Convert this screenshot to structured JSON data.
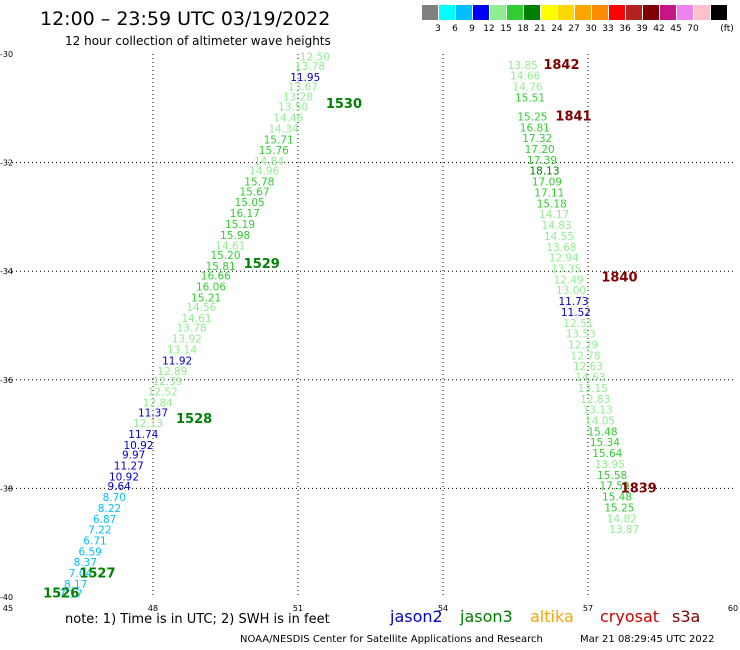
{
  "title": "12:00 – 23:59 UTC 03/19/2022",
  "subtitle": "12 hour collection of altimeter wave heights",
  "legend": {
    "unit": "(ft)",
    "colors": [
      "#808080",
      "#00ffff",
      "#00bfff",
      "#0000ff",
      "#90ee90",
      "#32cd32",
      "#008000",
      "#ffff00",
      "#ffd700",
      "#ffa500",
      "#ff8c00",
      "#ff0000",
      "#b22222",
      "#800000",
      "#c71585",
      "#ee82ee",
      "#ffc0cb",
      "#000000"
    ],
    "labels": [
      "3",
      "6",
      "9",
      "12",
      "15",
      "18",
      "21",
      "24",
      "27",
      "30",
      "33",
      "36",
      "39",
      "42",
      "45",
      "70"
    ]
  },
  "footer": {
    "note": "note:  1) Time is in UTC;  2) SWH is in feet",
    "credit": "NOAA/NESDIS Center for Satellite Applications and Research",
    "timestamp": "Mar 21 08:29:45 UTC 2022"
  },
  "satellites": [
    {
      "name": "jason2",
      "color": "#0000cc"
    },
    {
      "name": "jason3",
      "color": "#008000"
    },
    {
      "name": "altika",
      "color": "#ffa500"
    },
    {
      "name": "cryosat",
      "color": "#cc0000"
    },
    {
      "name": "s3a",
      "color": "#800000"
    }
  ],
  "chart_data": {
    "type": "scatter",
    "xlim": [
      45,
      60
    ],
    "ylim": [
      -40,
      -30
    ],
    "x_ticks": [
      45,
      48,
      51,
      54,
      57,
      60
    ],
    "y_ticks": [
      -30,
      -32,
      -34,
      -36,
      -38,
      -40
    ],
    "grid": true,
    "tracks": [
      {
        "points": [
          {
            "x": 51.35,
            "y": -30.05,
            "swh": "12.50",
            "color": "#90ee90"
          },
          {
            "x": 51.25,
            "y": -30.22,
            "swh": "13.78",
            "color": "#90ee90"
          },
          {
            "x": 51.15,
            "y": -30.42,
            "swh": "11.95",
            "color": "#0000cc"
          },
          {
            "x": 51.1,
            "y": -30.6,
            "swh": "13.67",
            "color": "#90ee90"
          },
          {
            "x": 51.0,
            "y": -30.78,
            "swh": "13.28",
            "color": "#90ee90"
          },
          {
            "x": 50.9,
            "y": -30.97,
            "swh": "13.50",
            "color": "#90ee90"
          },
          {
            "x": 50.8,
            "y": -31.17,
            "swh": "14.46",
            "color": "#90ee90"
          },
          {
            "x": 50.7,
            "y": -31.37,
            "swh": "14.34",
            "color": "#90ee90"
          },
          {
            "x": 50.6,
            "y": -31.57,
            "swh": "15.71",
            "color": "#32cd32"
          },
          {
            "x": 50.5,
            "y": -31.77,
            "swh": "15.76",
            "color": "#32cd32"
          },
          {
            "x": 50.4,
            "y": -31.97,
            "swh": "14.84",
            "color": "#90ee90"
          },
          {
            "x": 50.3,
            "y": -32.15,
            "swh": "14.96",
            "color": "#90ee90"
          },
          {
            "x": 50.2,
            "y": -32.35,
            "swh": "15.78",
            "color": "#32cd32"
          },
          {
            "x": 50.1,
            "y": -32.53,
            "swh": "15.67",
            "color": "#32cd32"
          },
          {
            "x": 50.0,
            "y": -32.73,
            "swh": "15.05",
            "color": "#32cd32"
          },
          {
            "x": 49.9,
            "y": -32.93,
            "swh": "16.17",
            "color": "#32cd32"
          },
          {
            "x": 49.8,
            "y": -33.13,
            "swh": "15.19",
            "color": "#32cd32"
          },
          {
            "x": 49.7,
            "y": -33.33,
            "swh": "15.98",
            "color": "#32cd32"
          },
          {
            "x": 49.6,
            "y": -33.53,
            "swh": "14.61",
            "color": "#90ee90"
          },
          {
            "x": 49.5,
            "y": -33.7,
            "swh": "15.20",
            "color": "#32cd32"
          },
          {
            "x": 49.4,
            "y": -33.9,
            "swh": "15.81",
            "color": "#32cd32"
          },
          {
            "x": 49.3,
            "y": -34.08,
            "swh": "16.66",
            "color": "#32cd32"
          },
          {
            "x": 49.2,
            "y": -34.28,
            "swh": "16.06",
            "color": "#32cd32"
          },
          {
            "x": 49.1,
            "y": -34.48,
            "swh": "15.21",
            "color": "#32cd32"
          },
          {
            "x": 49.0,
            "y": -34.66,
            "swh": "14.56",
            "color": "#90ee90"
          },
          {
            "x": 48.9,
            "y": -34.86,
            "swh": "14.61",
            "color": "#90ee90"
          },
          {
            "x": 48.8,
            "y": -35.04,
            "swh": "13.78",
            "color": "#90ee90"
          },
          {
            "x": 48.7,
            "y": -35.24,
            "swh": "13.92",
            "color": "#90ee90"
          },
          {
            "x": 48.6,
            "y": -35.44,
            "swh": "13.14",
            "color": "#90ee90"
          },
          {
            "x": 48.5,
            "y": -35.64,
            "swh": "11.92",
            "color": "#0000cc"
          },
          {
            "x": 48.4,
            "y": -35.84,
            "swh": "12.89",
            "color": "#90ee90"
          },
          {
            "x": 48.3,
            "y": -36.02,
            "swh": "12.39",
            "color": "#90ee90"
          },
          {
            "x": 48.2,
            "y": -36.22,
            "swh": "12.52",
            "color": "#90ee90"
          },
          {
            "x": 48.1,
            "y": -36.42,
            "swh": "12.84",
            "color": "#90ee90"
          },
          {
            "x": 48.0,
            "y": -36.6,
            "swh": "11.37",
            "color": "#0000cc"
          },
          {
            "x": 47.9,
            "y": -36.8,
            "swh": "12.13",
            "color": "#90ee90"
          },
          {
            "x": 47.8,
            "y": -37.0,
            "swh": "11.74",
            "color": "#0000cc"
          },
          {
            "x": 47.7,
            "y": -37.2,
            "swh": "10.92",
            "color": "#0000cc"
          },
          {
            "x": 47.6,
            "y": -37.38,
            "swh": "9.97",
            "color": "#0000cc"
          },
          {
            "x": 47.5,
            "y": -37.58,
            "swh": "11.27",
            "color": "#0000cc"
          },
          {
            "x": 47.4,
            "y": -37.78,
            "swh": "10.92",
            "color": "#0000cc"
          },
          {
            "x": 47.3,
            "y": -37.96,
            "swh": "9.64",
            "color": "#0000cc"
          },
          {
            "x": 47.2,
            "y": -38.16,
            "swh": "8.70",
            "color": "#00bfff"
          },
          {
            "x": 47.1,
            "y": -38.36,
            "swh": "8.22",
            "color": "#00bfff"
          },
          {
            "x": 47.0,
            "y": -38.56,
            "swh": "6.87",
            "color": "#00bfff"
          },
          {
            "x": 46.9,
            "y": -38.76,
            "swh": "7.22",
            "color": "#00bfff"
          },
          {
            "x": 46.8,
            "y": -38.96,
            "swh": "6.71",
            "color": "#00bfff"
          },
          {
            "x": 46.7,
            "y": -39.16,
            "swh": "6.59",
            "color": "#00bfff"
          },
          {
            "x": 46.6,
            "y": -39.36,
            "swh": "8.37",
            "color": "#00bfff"
          },
          {
            "x": 46.5,
            "y": -39.56,
            "swh": "7.04",
            "color": "#00bfff"
          },
          {
            "x": 46.4,
            "y": -39.76,
            "swh": "8.17",
            "color": "#00bfff"
          },
          {
            "x": 46.3,
            "y": -39.94,
            "swh": "7.17",
            "color": "#00bfff"
          }
        ],
        "time_labels": [
          {
            "text": "1530",
            "x": 51.95,
            "y": -30.9,
            "color": "#008000"
          },
          {
            "text": "1529",
            "x": 50.25,
            "y": -33.85,
            "color": "#008000"
          },
          {
            "text": "1528",
            "x": 48.85,
            "y": -36.7,
            "color": "#008000"
          },
          {
            "text": "1527",
            "x": 46.85,
            "y": -39.55,
            "color": "#008000"
          },
          {
            "text": "1526",
            "x": 46.1,
            "y": -39.92,
            "color": "#008000"
          }
        ]
      },
      {
        "points": [
          {
            "x": 55.65,
            "y": -30.2,
            "swh": "13.85",
            "color": "#90ee90"
          },
          {
            "x": 55.7,
            "y": -30.4,
            "swh": "14.66",
            "color": "#90ee90"
          },
          {
            "x": 55.75,
            "y": -30.6,
            "swh": "14.76",
            "color": "#90ee90"
          },
          {
            "x": 55.8,
            "y": -30.8,
            "swh": "15.51",
            "color": "#32cd32"
          },
          {
            "x": 55.85,
            "y": -31.15,
            "swh": "15.25",
            "color": "#32cd32"
          },
          {
            "x": 55.9,
            "y": -31.35,
            "swh": "16.81",
            "color": "#32cd32"
          },
          {
            "x": 55.95,
            "y": -31.55,
            "swh": "17.32",
            "color": "#32cd32"
          },
          {
            "x": 56.0,
            "y": -31.75,
            "swh": "17.20",
            "color": "#32cd32"
          },
          {
            "x": 56.05,
            "y": -31.95,
            "swh": "17.39",
            "color": "#32cd32"
          },
          {
            "x": 56.1,
            "y": -32.15,
            "swh": "18.13",
            "color": "#008000"
          },
          {
            "x": 56.15,
            "y": -32.35,
            "swh": "17.09",
            "color": "#32cd32"
          },
          {
            "x": 56.2,
            "y": -32.55,
            "swh": "17.11",
            "color": "#32cd32"
          },
          {
            "x": 56.25,
            "y": -32.75,
            "swh": "15.18",
            "color": "#32cd32"
          },
          {
            "x": 56.3,
            "y": -32.95,
            "swh": "14.17",
            "color": "#90ee90"
          },
          {
            "x": 56.35,
            "y": -33.15,
            "swh": "14.83",
            "color": "#90ee90"
          },
          {
            "x": 56.4,
            "y": -33.35,
            "swh": "14.55",
            "color": "#90ee90"
          },
          {
            "x": 56.45,
            "y": -33.55,
            "swh": "13.68",
            "color": "#90ee90"
          },
          {
            "x": 56.5,
            "y": -33.75,
            "swh": "12.94",
            "color": "#90ee90"
          },
          {
            "x": 56.55,
            "y": -33.95,
            "swh": "13.35",
            "color": "#90ee90"
          },
          {
            "x": 56.6,
            "y": -34.15,
            "swh": "12.49",
            "color": "#90ee90"
          },
          {
            "x": 56.65,
            "y": -34.35,
            "swh": "13.00",
            "color": "#90ee90"
          },
          {
            "x": 56.7,
            "y": -34.55,
            "swh": "11.73",
            "color": "#0000cc"
          },
          {
            "x": 56.75,
            "y": -34.75,
            "swh": "11.52",
            "color": "#0000cc"
          },
          {
            "x": 56.8,
            "y": -34.95,
            "swh": "12.51",
            "color": "#90ee90"
          },
          {
            "x": 56.85,
            "y": -35.15,
            "swh": "13.53",
            "color": "#90ee90"
          },
          {
            "x": 56.9,
            "y": -35.35,
            "swh": "12.29",
            "color": "#90ee90"
          },
          {
            "x": 56.95,
            "y": -35.55,
            "swh": "12.78",
            "color": "#90ee90"
          },
          {
            "x": 57.0,
            "y": -35.75,
            "swh": "12.63",
            "color": "#90ee90"
          },
          {
            "x": 57.05,
            "y": -35.95,
            "swh": "14.63",
            "color": "#90ee90"
          },
          {
            "x": 57.1,
            "y": -36.15,
            "swh": "13.15",
            "color": "#90ee90"
          },
          {
            "x": 57.15,
            "y": -36.35,
            "swh": "12.83",
            "color": "#90ee90"
          },
          {
            "x": 57.2,
            "y": -36.55,
            "swh": "13.13",
            "color": "#90ee90"
          },
          {
            "x": 57.25,
            "y": -36.75,
            "swh": "14.05",
            "color": "#90ee90"
          },
          {
            "x": 57.3,
            "y": -36.95,
            "swh": "15.48",
            "color": "#32cd32"
          },
          {
            "x": 57.35,
            "y": -37.15,
            "swh": "15.34",
            "color": "#32cd32"
          },
          {
            "x": 57.4,
            "y": -37.35,
            "swh": "15.64",
            "color": "#32cd32"
          },
          {
            "x": 57.45,
            "y": -37.55,
            "swh": "13.95",
            "color": "#90ee90"
          },
          {
            "x": 57.5,
            "y": -37.75,
            "swh": "15.58",
            "color": "#32cd32"
          },
          {
            "x": 57.55,
            "y": -37.95,
            "swh": "17.59",
            "color": "#32cd32"
          },
          {
            "x": 57.6,
            "y": -38.15,
            "swh": "15.48",
            "color": "#32cd32"
          },
          {
            "x": 57.65,
            "y": -38.35,
            "swh": "15.25",
            "color": "#32cd32"
          },
          {
            "x": 57.7,
            "y": -38.55,
            "swh": "14.82",
            "color": "#90ee90"
          },
          {
            "x": 57.75,
            "y": -38.75,
            "swh": "13.87",
            "color": "#90ee90"
          }
        ],
        "time_labels": [
          {
            "text": "1842",
            "x": 56.45,
            "y": -30.18,
            "color": "#800000"
          },
          {
            "text": "1841",
            "x": 56.7,
            "y": -31.13,
            "color": "#800000"
          },
          {
            "text": "1840",
            "x": 57.65,
            "y": -34.1,
            "color": "#800000"
          },
          {
            "text": "1839",
            "x": 58.05,
            "y": -37.98,
            "color": "#800000"
          }
        ]
      }
    ]
  }
}
